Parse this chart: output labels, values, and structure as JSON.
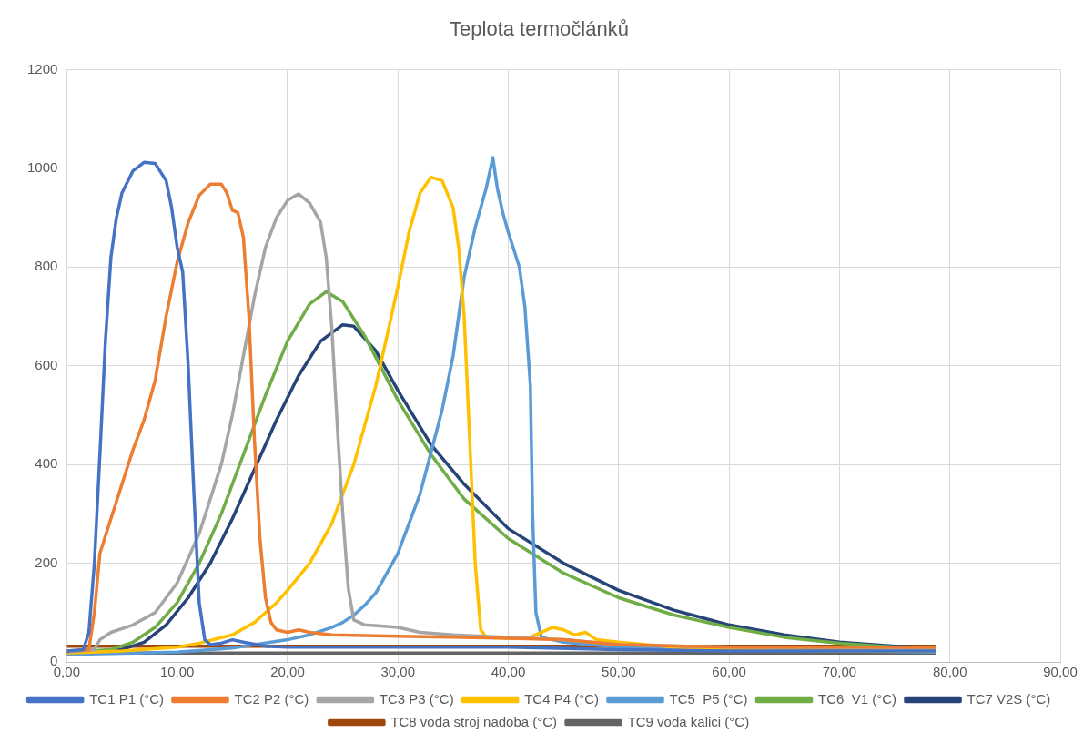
{
  "chart_data": {
    "type": "line",
    "title": "Teplota termočlánků",
    "xlim": [
      0,
      90
    ],
    "xticks": [
      {
        "value": 0,
        "label": "0,00"
      },
      {
        "value": 10,
        "label": "10,00"
      },
      {
        "value": 20,
        "label": "20,00"
      },
      {
        "value": 30,
        "label": "30,00"
      },
      {
        "value": 40,
        "label": "40,00"
      },
      {
        "value": 50,
        "label": "50,00"
      },
      {
        "value": 60,
        "label": "60,00"
      },
      {
        "value": 70,
        "label": "70,00"
      },
      {
        "value": 80,
        "label": "80,00"
      },
      {
        "value": 90,
        "label": "90,00"
      }
    ],
    "ylim": [
      0,
      1200
    ],
    "yticks": [
      0,
      200,
      400,
      600,
      800,
      1000,
      1200
    ],
    "grid": true,
    "legend": "bottom",
    "marker": "none",
    "line_style": "solid",
    "series": [
      {
        "name": "TC1 P1 (°C)",
        "color": "#4472c4",
        "x": [
          0,
          1.5,
          2,
          2.5,
          3,
          3.5,
          4,
          4.5,
          5,
          6,
          7,
          8,
          9,
          9.5,
          10,
          10.5,
          11,
          11.5,
          12,
          12.5,
          13,
          14,
          15,
          16,
          18,
          20,
          30,
          40,
          50,
          60,
          70,
          78.7
        ],
        "values": [
          22,
          25,
          60,
          200,
          420,
          650,
          820,
          900,
          950,
          995,
          1012,
          1010,
          975,
          920,
          840,
          790,
          600,
          350,
          120,
          45,
          35,
          38,
          45,
          40,
          32,
          30,
          30,
          30,
          25,
          22,
          22,
          22
        ]
      },
      {
        "name": "TC2 P2 (°C)",
        "color": "#ed7d31",
        "x": [
          0,
          2,
          2.5,
          3,
          4,
          5,
          6,
          7,
          8,
          9,
          10,
          11,
          12,
          13,
          14,
          14.5,
          15,
          15.5,
          16,
          16.5,
          17,
          17.5,
          18,
          18.5,
          19,
          20,
          21,
          22,
          24,
          30,
          40,
          45,
          50,
          60,
          70,
          78.7
        ],
        "values": [
          22,
          25,
          100,
          220,
          290,
          360,
          430,
          490,
          570,
          700,
          810,
          890,
          945,
          968,
          968,
          950,
          915,
          910,
          860,
          700,
          450,
          250,
          130,
          80,
          65,
          60,
          65,
          60,
          55,
          52,
          48,
          45,
          35,
          30,
          30,
          30
        ]
      },
      {
        "name": "TC3 P3 (°C)",
        "color": "#a5a5a5",
        "x": [
          0,
          2.5,
          3,
          4,
          6,
          8,
          10,
          12,
          14,
          15,
          16,
          17,
          18,
          19,
          20,
          21,
          22,
          23,
          23.5,
          24,
          24.5,
          25,
          25.5,
          26,
          27,
          29,
          30,
          32,
          35,
          40,
          45,
          50,
          60,
          70,
          78.7
        ],
        "values": [
          20,
          25,
          45,
          60,
          75,
          100,
          160,
          260,
          400,
          500,
          620,
          740,
          840,
          900,
          935,
          948,
          930,
          890,
          820,
          680,
          480,
          300,
          150,
          85,
          75,
          72,
          70,
          60,
          55,
          50,
          45,
          35,
          30,
          28,
          28
        ]
      },
      {
        "name": "TC4 P4 (°C)",
        "color": "#ffc000",
        "x": [
          0,
          5,
          10,
          12,
          15,
          17,
          19,
          20,
          22,
          24,
          26,
          28,
          30,
          31,
          32,
          33,
          34,
          35,
          35.5,
          36,
          36.5,
          37,
          37.5,
          38,
          40,
          42,
          43,
          44,
          45,
          46,
          47,
          48,
          50,
          55,
          60,
          70,
          78.7
        ],
        "values": [
          18,
          22,
          30,
          38,
          55,
          80,
          120,
          145,
          200,
          280,
          400,
          560,
          760,
          870,
          950,
          982,
          975,
          920,
          840,
          700,
          450,
          200,
          65,
          50,
          48,
          50,
          60,
          70,
          65,
          55,
          60,
          45,
          40,
          30,
          25,
          22,
          22
        ]
      },
      {
        "name": "TC5  P5 (°C)",
        "color": "#5b9bd5",
        "x": [
          0,
          10,
          15,
          20,
          22,
          24,
          25,
          26,
          27,
          28,
          30,
          32,
          34,
          35,
          36,
          37,
          38,
          38.6,
          39,
          39.5,
          40,
          41,
          41.5,
          42,
          42.2,
          42.5,
          43,
          45,
          50,
          60,
          70,
          78.7
        ],
        "values": [
          15,
          20,
          28,
          45,
          55,
          70,
          80,
          95,
          115,
          140,
          220,
          340,
          510,
          620,
          780,
          880,
          960,
          1022,
          960,
          910,
          870,
          800,
          720,
          560,
          300,
          100,
          50,
          40,
          30,
          25,
          22,
          20
        ]
      },
      {
        "name": "TC6  V1 (°C)",
        "color": "#70ad47",
        "x": [
          0,
          4,
          6,
          8,
          10,
          12,
          14,
          16,
          18,
          20,
          22,
          23.5,
          25,
          27,
          30,
          33,
          36,
          40,
          45,
          50,
          55,
          60,
          65,
          70,
          75,
          78.7
        ],
        "values": [
          20,
          25,
          40,
          70,
          120,
          200,
          300,
          420,
          540,
          650,
          725,
          750,
          730,
          660,
          530,
          420,
          330,
          250,
          180,
          130,
          95,
          70,
          50,
          38,
          30,
          25
        ]
      },
      {
        "name": "TC7 V2S (°C)",
        "color": "#264478",
        "x": [
          0,
          5,
          7,
          9,
          11,
          13,
          15,
          17,
          19,
          21,
          23,
          25,
          26,
          28,
          30,
          33,
          36,
          40,
          45,
          50,
          55,
          60,
          65,
          70,
          75,
          78.7
        ],
        "values": [
          18,
          25,
          40,
          75,
          130,
          200,
          290,
          390,
          490,
          580,
          650,
          683,
          680,
          630,
          550,
          440,
          360,
          270,
          200,
          145,
          105,
          75,
          55,
          40,
          32,
          28
        ]
      },
      {
        "name": "TC8 voda stroj nadoba (°C)",
        "color": "#9e480e",
        "x": [
          0,
          20,
          40,
          60,
          78.7
        ],
        "values": [
          32,
          32,
          32,
          32,
          32
        ]
      },
      {
        "name": "TC9 voda kalici (°C)",
        "color": "#636363",
        "x": [
          0,
          78.7
        ],
        "values": [
          18,
          18
        ]
      }
    ]
  }
}
